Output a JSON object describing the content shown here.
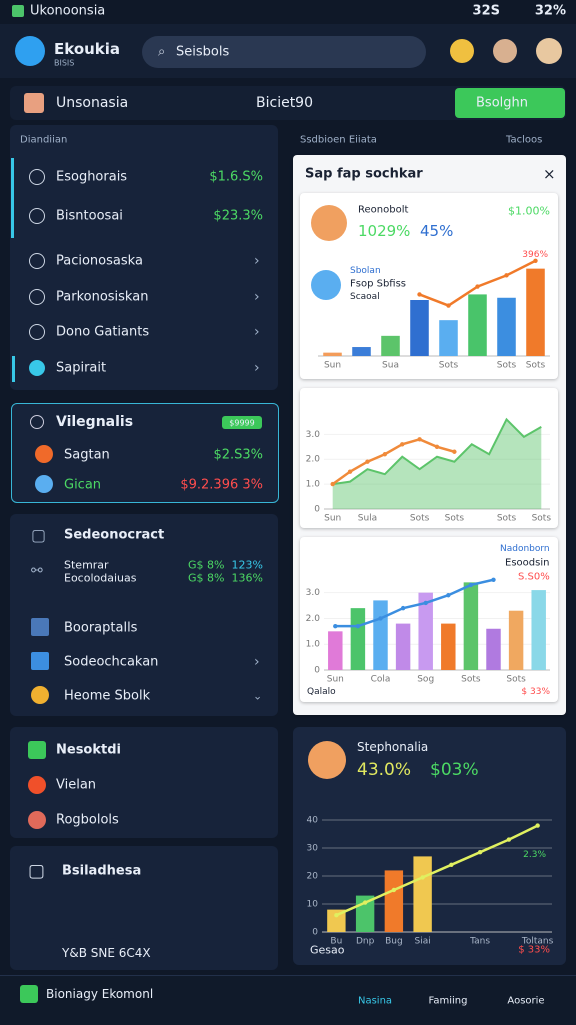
{
  "status_bar": {
    "app": "Ukonoonsia",
    "time": "32S",
    "battery": "32%"
  },
  "header": {
    "title": "Ekoukia",
    "subtitle": "BISIS",
    "search": "Seisbols"
  },
  "toolbar": {
    "title": "Unsonasia",
    "center": "Biciet90",
    "button": "Bsolghn"
  },
  "left_panel": {
    "title": "Diandiian",
    "items": [
      {
        "label": "Esoghorais",
        "value": "$1.6.S%"
      },
      {
        "label": "Bisntoosai",
        "value": "$23.3%"
      },
      {
        "label": "Pacionosaska"
      },
      {
        "label": "Parkonosiskan"
      },
      {
        "label": "Dono Gatiants"
      },
      {
        "label": "Sapirait"
      }
    ]
  },
  "alert_panel": {
    "title": "Vilegnalis",
    "badge": "$9999",
    "items": [
      {
        "label": "Sagtan",
        "value": "$2.S3%"
      },
      {
        "label": "Gican",
        "value": "$9.2.396 3%"
      }
    ]
  },
  "detail_panel": {
    "title": "Sedeonocract",
    "rows": [
      {
        "label": "Stemrar",
        "value_1": "G$ 8%",
        "value_2": "123%"
      },
      {
        "label": "Eocolodaiuas",
        "value_1": "G$ 8%",
        "value_2": "136%"
      }
    ],
    "items": [
      "Booraptalls",
      "Sodeochcakan",
      "Heome Sbolk"
    ]
  },
  "news_panel": {
    "title": "Nesoktdi",
    "items": [
      "Vielan",
      "Rogbolols"
    ]
  },
  "footer_panel": {
    "title": "Bsiladhesa",
    "note": "Y&B SNE 6C4X"
  },
  "right_panel": {
    "title": "Ssdbioen Eiiata",
    "filter": "Tacloos"
  },
  "popup": {
    "title": "Sap fap sochkar",
    "card_1": {
      "name": "Reonobolt",
      "value": "$1.00%",
      "stat_1": "1029%",
      "stat_2": "45%",
      "sub_name": "Sbolan",
      "sub_title": "Fsop Sbfiss",
      "sub_note": "Scaoal",
      "peak": "396%"
    },
    "card_3": {
      "name": "Nadonborn",
      "sub_name": "Esoodsin",
      "value": "S.S0%",
      "footer": "Qalalo",
      "footer_value": "$ 33%"
    },
    "charts": [
      {
        "type": "bar",
        "ylim": [
          0,
          100
        ],
        "categories": [
          "Sun",
          null,
          "Sua",
          null,
          "Sots",
          null,
          "Sots",
          "Sots"
        ],
        "series": [
          {
            "type": "bar",
            "colors": [
              "#f39c5a",
              "#3b7dd8",
              "#5cc46a",
              "#2f6fd0",
              "#5aaef0",
              "#49c46a",
              "#3c8ee0",
              "#f07a2a"
            ],
            "values": [
              3,
              8,
              18,
              50,
              32,
              55,
              52,
              78
            ]
          },
          {
            "type": "line",
            "color": "#f07a2a",
            "values": [
              null,
              null,
              null,
              55,
              45,
              62,
              72,
              85
            ]
          }
        ]
      },
      {
        "type": "area",
        "ylim": [
          0,
          4.5
        ],
        "yticks": [
          0,
          {
            "value": 1,
            "label": "1.0"
          },
          {
            "value": 2,
            "label": "2.0"
          },
          {
            "value": 3,
            "label": "3.0"
          }
        ],
        "categories": [
          "Sun",
          null,
          "Sula",
          null,
          null,
          "Sots",
          null,
          "Sots",
          null,
          null,
          "Sots",
          null,
          "Sots"
        ],
        "series": [
          {
            "type": "area",
            "color": "#5cc46a",
            "values": [
              1.0,
              1.1,
              1.6,
              1.4,
              2.1,
              1.6,
              2.1,
              1.9,
              2.6,
              2.2,
              3.6,
              2.9,
              3.3
            ]
          },
          {
            "type": "line",
            "color": "#f08a3a",
            "values": [
              1.0,
              1.5,
              1.9,
              2.2,
              2.6,
              2.8,
              2.5,
              2.3,
              null,
              null,
              null,
              null,
              null
            ]
          }
        ]
      },
      {
        "type": "bar",
        "ylim": [
          0,
          4.5
        ],
        "yticks": [
          0,
          {
            "value": 1,
            "label": "1.0"
          },
          {
            "value": 2,
            "label": "2.0"
          },
          {
            "value": 3,
            "label": "3.0"
          }
        ],
        "categories": [
          "Sun",
          null,
          "Cola",
          null,
          "Sog",
          null,
          "Sots",
          null,
          "Sots",
          null
        ],
        "series": [
          {
            "type": "bar",
            "colors": [
              "#e07ad8",
              "#4cc46a",
              "#5aaef0",
              "#c08ae8",
              "#c89af0",
              "#f07a2a",
              "#5cc46a",
              "#b07ae0",
              "#f0a860",
              "#8ad8e8"
            ],
            "values": [
              1.5,
              2.4,
              2.7,
              1.8,
              3.0,
              1.8,
              3.4,
              1.6,
              2.3,
              3.1
            ]
          },
          {
            "type": "line",
            "color": "#3b8ee0",
            "values": [
              1.7,
              1.7,
              2.0,
              2.4,
              2.6,
              2.9,
              3.3,
              3.5,
              null,
              null
            ]
          }
        ]
      }
    ]
  },
  "summary_card": {
    "title": "Stephonalia",
    "stat_1": "43.0%",
    "stat_2": "$03%",
    "note_1": "2.3%",
    "footer": "Gesao",
    "footer_value": "$ 33%",
    "chart": {
      "type": "bar",
      "ylim": [
        0,
        45
      ],
      "yticks": [
        0,
        10,
        20,
        30,
        40
      ],
      "categories": [
        "Bu",
        "Dnp",
        "Bug",
        "Siai",
        null,
        "Tans",
        null,
        "Toltans"
      ],
      "series": [
        {
          "type": "bar",
          "colors": [
            "#f0c850",
            "#4cc46a",
            "#f07a2a",
            "#f0c850",
            null,
            null,
            null,
            null
          ],
          "values": [
            8,
            13,
            22,
            27,
            null,
            null,
            null,
            null
          ]
        },
        {
          "type": "line",
          "color": "#e0f060",
          "values": [
            6,
            10.5,
            15,
            19.5,
            24,
            28.5,
            33,
            38
          ]
        }
      ]
    }
  },
  "bottom_nav": {
    "status": "Bioniagy Ekomonl",
    "tabs": [
      "Nasina",
      "Famiing",
      "Aosorie"
    ]
  }
}
